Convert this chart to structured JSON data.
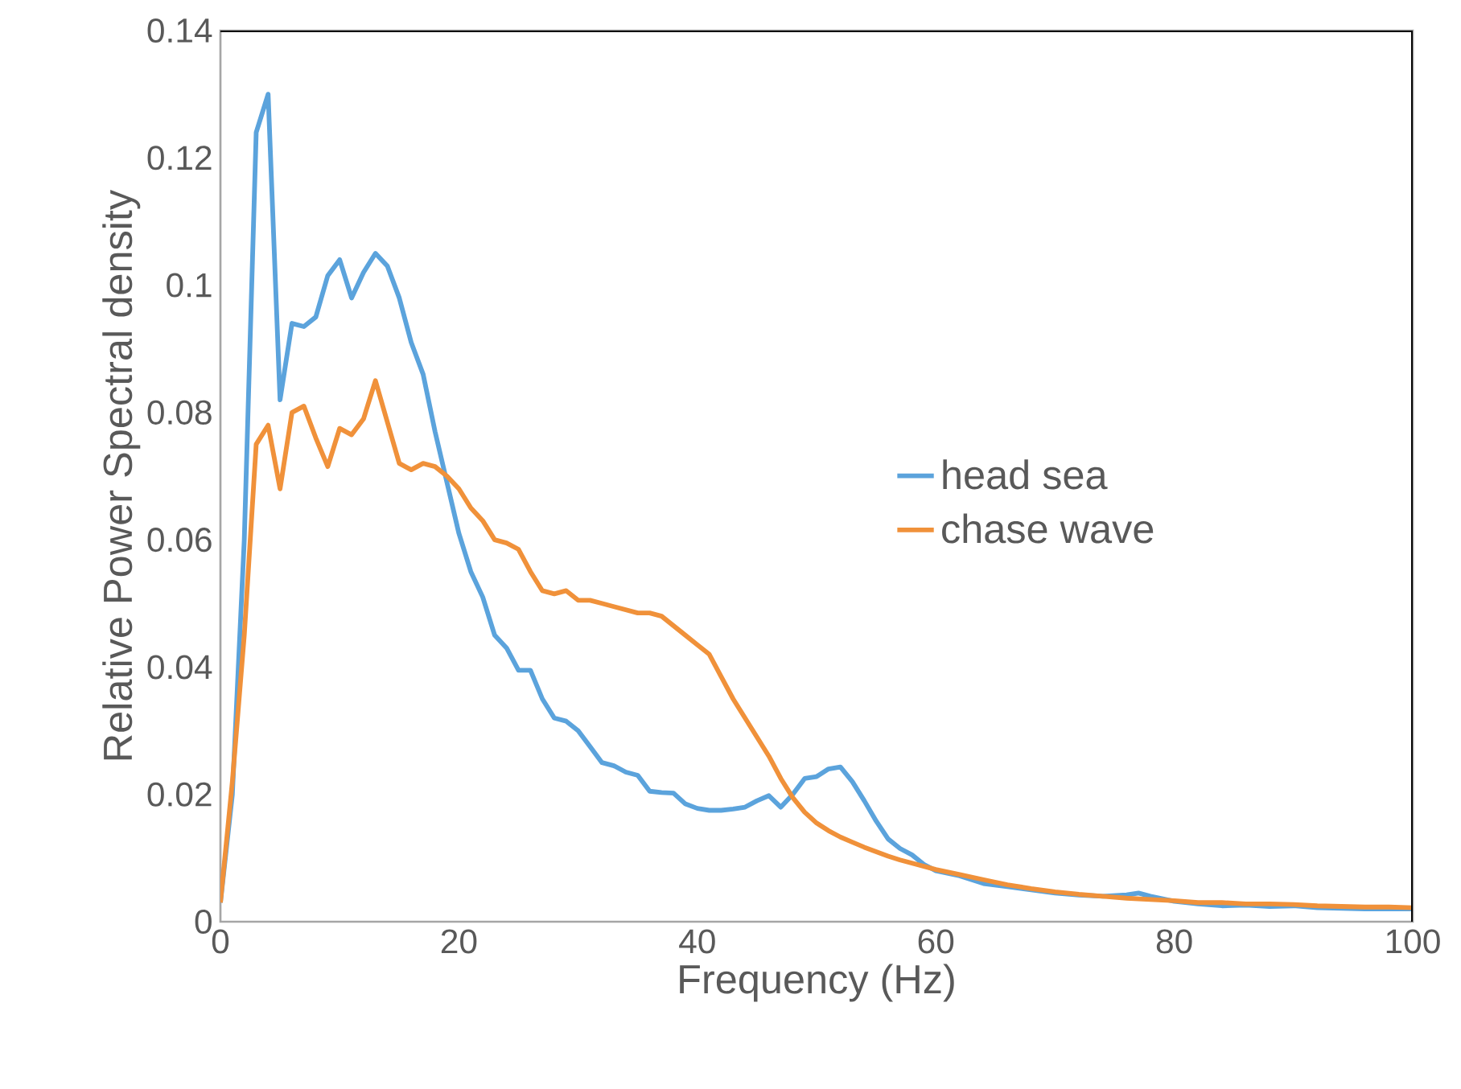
{
  "chart_data": {
    "type": "line",
    "xlabel": "Frequency (Hz)",
    "ylabel": "Relative Power Spectral density",
    "x": [
      0,
      1,
      2,
      3,
      4,
      5,
      6,
      7,
      8,
      9,
      10,
      11,
      12,
      13,
      14,
      15,
      16,
      17,
      18,
      19,
      20,
      21,
      22,
      23,
      24,
      25,
      26,
      27,
      28,
      29,
      30,
      31,
      32,
      33,
      34,
      35,
      36,
      37,
      38,
      39,
      40,
      41,
      42,
      43,
      44,
      45,
      46,
      47,
      48,
      49,
      50,
      51,
      52,
      53,
      54,
      55,
      56,
      57,
      58,
      59,
      60,
      62,
      64,
      66,
      68,
      70,
      72,
      74,
      76,
      77,
      78,
      80,
      82,
      84,
      86,
      88,
      90,
      92,
      94,
      96,
      98,
      100
    ],
    "series": [
      {
        "name": "head sea",
        "color": "#5ba3dc",
        "values": [
          0.003,
          0.02,
          0.06,
          0.124,
          0.13,
          0.082,
          0.094,
          0.0935,
          0.095,
          0.1015,
          0.104,
          0.098,
          0.102,
          0.105,
          0.103,
          0.098,
          0.091,
          0.086,
          0.077,
          0.069,
          0.061,
          0.055,
          0.051,
          0.045,
          0.043,
          0.0395,
          0.0395,
          0.035,
          0.032,
          0.0315,
          0.03,
          0.0275,
          0.025,
          0.0245,
          0.0235,
          0.023,
          0.0205,
          0.0203,
          0.0202,
          0.0185,
          0.0178,
          0.0175,
          0.0175,
          0.0177,
          0.018,
          0.019,
          0.0198,
          0.018,
          0.02,
          0.0225,
          0.0228,
          0.024,
          0.0243,
          0.022,
          0.019,
          0.0158,
          0.013,
          0.0115,
          0.0105,
          0.009,
          0.008,
          0.0072,
          0.006,
          0.0055,
          0.005,
          0.0045,
          0.0042,
          0.004,
          0.0042,
          0.0045,
          0.004,
          0.0032,
          0.0028,
          0.0025,
          0.0026,
          0.0024,
          0.0025,
          0.0022,
          0.0021,
          0.002,
          0.002,
          0.002
        ]
      },
      {
        "name": "chase wave",
        "color": "#f0913a",
        "values": [
          0.003,
          0.022,
          0.045,
          0.075,
          0.078,
          0.068,
          0.08,
          0.081,
          0.076,
          0.0715,
          0.0775,
          0.0765,
          0.079,
          0.085,
          0.0785,
          0.072,
          0.071,
          0.072,
          0.0715,
          0.07,
          0.068,
          0.065,
          0.063,
          0.06,
          0.0595,
          0.0585,
          0.055,
          0.052,
          0.0515,
          0.052,
          0.0505,
          0.0505,
          0.05,
          0.0495,
          0.049,
          0.0485,
          0.0485,
          0.048,
          0.0465,
          0.045,
          0.0435,
          0.042,
          0.0385,
          0.035,
          0.032,
          0.029,
          0.026,
          0.0225,
          0.0195,
          0.0172,
          0.0155,
          0.0143,
          0.0133,
          0.0125,
          0.0117,
          0.011,
          0.0103,
          0.0097,
          0.0092,
          0.0087,
          0.0082,
          0.0074,
          0.0066,
          0.0058,
          0.0052,
          0.0047,
          0.0043,
          0.004,
          0.0037,
          0.0036,
          0.0035,
          0.0033,
          0.003,
          0.003,
          0.0028,
          0.0028,
          0.0027,
          0.0025,
          0.0024,
          0.0023,
          0.0023,
          0.0022
        ]
      }
    ],
    "xlim": [
      0,
      100
    ],
    "xticks": [
      0,
      20,
      40,
      60,
      80,
      100
    ],
    "ylim": [
      0,
      0.14
    ],
    "yticks": [
      0,
      0.02,
      0.04,
      0.06,
      0.08,
      0.1,
      0.12,
      0.14
    ],
    "legend": "right",
    "grid": false,
    "marker": "none",
    "line_style": "solid"
  }
}
